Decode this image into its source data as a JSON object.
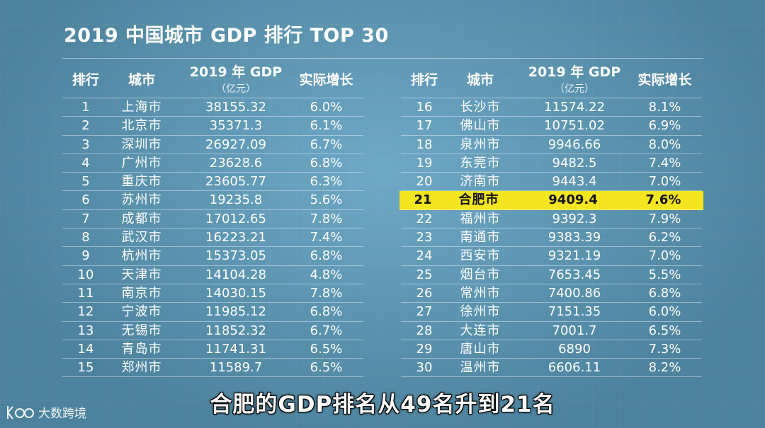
{
  "title": "2019 中国城市 GDP 排行 TOP 30",
  "headers": {
    "rank": "排行",
    "city": "城市",
    "gdp": "2019 年 GDP",
    "gdp_unit": "（亿元）",
    "growth": "实际增长"
  },
  "left_rows": [
    {
      "rank": "1",
      "city": "上海市",
      "gdp": "38155.32",
      "growth": "6.0%"
    },
    {
      "rank": "2",
      "city": "北京市",
      "gdp": "35371.3",
      "growth": "6.1%"
    },
    {
      "rank": "3",
      "city": "深圳市",
      "gdp": "26927.09",
      "growth": "6.7%"
    },
    {
      "rank": "4",
      "city": "广州市",
      "gdp": "23628.6",
      "growth": "6.8%"
    },
    {
      "rank": "5",
      "city": "重庆市",
      "gdp": "23605.77",
      "growth": "6.3%"
    },
    {
      "rank": "6",
      "city": "苏州市",
      "gdp": "19235.8",
      "growth": "5.6%"
    },
    {
      "rank": "7",
      "city": "成都市",
      "gdp": "17012.65",
      "growth": "7.8%"
    },
    {
      "rank": "8",
      "city": "武汉市",
      "gdp": "16223.21",
      "growth": "7.4%"
    },
    {
      "rank": "9",
      "city": "杭州市",
      "gdp": "15373.05",
      "growth": "6.8%"
    },
    {
      "rank": "10",
      "city": "天津市",
      "gdp": "14104.28",
      "growth": "4.8%"
    },
    {
      "rank": "11",
      "city": "南京市",
      "gdp": "14030.15",
      "growth": "7.8%"
    },
    {
      "rank": "12",
      "city": "宁波市",
      "gdp": "11985.12",
      "growth": "6.8%"
    },
    {
      "rank": "13",
      "city": "无锡市",
      "gdp": "11852.32",
      "growth": "6.7%"
    },
    {
      "rank": "14",
      "city": "青岛市",
      "gdp": "11741.31",
      "growth": "6.5%"
    },
    {
      "rank": "15",
      "city": "郑州市",
      "gdp": "11589.7",
      "growth": "6.5%"
    }
  ],
  "right_rows": [
    {
      "rank": "16",
      "city": "长沙市",
      "gdp": "11574.22",
      "growth": "8.1%"
    },
    {
      "rank": "17",
      "city": "佛山市",
      "gdp": "10751.02",
      "growth": "6.9%"
    },
    {
      "rank": "18",
      "city": "泉州市",
      "gdp": "9946.66",
      "growth": "8.0%"
    },
    {
      "rank": "19",
      "city": "东莞市",
      "gdp": "9482.5",
      "growth": "7.4%"
    },
    {
      "rank": "20",
      "city": "济南市",
      "gdp": "9443.4",
      "growth": "7.0%"
    },
    {
      "rank": "21",
      "city": "合肥市",
      "gdp": "9409.4",
      "growth": "7.6%",
      "highlight": true
    },
    {
      "rank": "22",
      "city": "福州市",
      "gdp": "9392.3",
      "growth": "7.9%"
    },
    {
      "rank": "23",
      "city": "南通市",
      "gdp": "9383.39",
      "growth": "6.2%"
    },
    {
      "rank": "24",
      "city": "西安市",
      "gdp": "9321.19",
      "growth": "7.0%"
    },
    {
      "rank": "25",
      "city": "烟台市",
      "gdp": "7653.45",
      "growth": "5.5%"
    },
    {
      "rank": "26",
      "city": "常州市",
      "gdp": "7400.86",
      "growth": "6.8%"
    },
    {
      "rank": "27",
      "city": "徐州市",
      "gdp": "7151.35",
      "growth": "6.0%"
    },
    {
      "rank": "28",
      "city": "大连市",
      "gdp": "7001.7",
      "growth": "6.5%"
    },
    {
      "rank": "29",
      "city": "唐山市",
      "gdp": "6890",
      "growth": "7.3%"
    },
    {
      "rank": "30",
      "city": "温州市",
      "gdp": "6606.11",
      "growth": "8.2%"
    }
  ],
  "subtitle": "合肥的GDP排名从49名升到21名",
  "watermark": "大数跨境",
  "icons": {
    "watermark_logo": "kb-logo-icon"
  },
  "colors": {
    "background": "#5e9fc0",
    "highlight": "#f3e51e",
    "text": "#ffffff"
  }
}
